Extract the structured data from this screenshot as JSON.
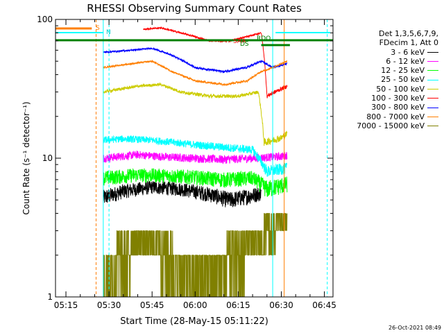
{
  "chart_data": {
    "type": "line",
    "title": "RHESSI Observing Summary Count Rates",
    "xlabel": "Start Time (28-May-15 05:11:22)",
    "ylabel": "Count Rate (s⁻¹ detector⁻¹)",
    "yscale": "log",
    "ylim": [
      1,
      100
    ],
    "xlim": [
      "05:11:22",
      "06:48:00"
    ],
    "xtick_labels": [
      "05:15",
      "05:30",
      "05:45",
      "06:00",
      "06:15",
      "06:30",
      "06:45"
    ],
    "ytick_labels": [
      "1",
      "10",
      "100"
    ],
    "legend_position": "right",
    "legend_header": [
      "Det 1,3,5,6,7,9,",
      "FDecim 1, Att 0"
    ],
    "legend": [
      {
        "label": "3 - 6 keV",
        "color": "#000000"
      },
      {
        "label": "6 - 12 keV",
        "color": "#ff00ff"
      },
      {
        "label": "12 - 25 keV",
        "color": "#00ff00"
      },
      {
        "label": "25 - 50 keV",
        "color": "#00ffff"
      },
      {
        "label": "50 - 100 keV",
        "color": "#cccc00"
      },
      {
        "label": "100 - 300 keV",
        "color": "#ff0000"
      },
      {
        "label": "300 - 800 keV",
        "color": "#0000ff"
      },
      {
        "label": "800 - 7000 keV",
        "color": "#ff7f00"
      },
      {
        "label": "7000 - 15000 keV",
        "color": "#808000"
      }
    ],
    "annotations": [
      {
        "text": "S",
        "color": "#ff7f00"
      },
      {
        "text": "N",
        "color": "#00cccc"
      },
      {
        "text": "SAA",
        "color": "#ff0000"
      },
      {
        "text": "RDO",
        "color": "#008000"
      },
      {
        "text": "DS",
        "color": "#008000"
      }
    ],
    "series": [
      {
        "name": "3 - 6 keV",
        "color": "#000000",
        "noise": 0.7,
        "points": [
          [
            "05:28",
            5.2
          ],
          [
            "05:35",
            5.8
          ],
          [
            "05:45",
            6.2
          ],
          [
            "05:55",
            6.0
          ],
          [
            "06:05",
            5.5
          ],
          [
            "06:12",
            5.0
          ],
          [
            "06:18",
            5.3
          ],
          [
            "06:23",
            5.6
          ]
        ]
      },
      {
        "name": "6 - 12 keV",
        "color": "#ff00ff",
        "noise": 0.7,
        "points": [
          [
            "05:28",
            10.0
          ],
          [
            "05:40",
            10.6
          ],
          [
            "05:50",
            10.2
          ],
          [
            "06:00",
            10.0
          ],
          [
            "06:10",
            9.8
          ],
          [
            "06:20",
            10.0
          ],
          [
            "06:30",
            10.3
          ],
          [
            "06:32",
            10.5
          ]
        ]
      },
      {
        "name": "12 - 25 keV",
        "color": "#00ff00",
        "noise": 0.9,
        "points": [
          [
            "05:28",
            7.2
          ],
          [
            "05:40",
            7.6
          ],
          [
            "05:50",
            7.5
          ],
          [
            "06:00",
            7.3
          ],
          [
            "06:10",
            7.0
          ],
          [
            "06:20",
            7.2
          ],
          [
            "06:25",
            6.0
          ],
          [
            "06:32",
            6.5
          ]
        ]
      },
      {
        "name": "25 - 50 keV",
        "color": "#00ffff",
        "noise": 0.8,
        "points": [
          [
            "05:28",
            13.5
          ],
          [
            "05:35",
            13.8
          ],
          [
            "05:45",
            13.5
          ],
          [
            "06:00",
            12.5
          ],
          [
            "06:10",
            12.0
          ],
          [
            "06:20",
            11.5
          ],
          [
            "06:25",
            8.0
          ],
          [
            "06:32",
            8.5
          ]
        ]
      },
      {
        "name": "50 - 100 keV",
        "color": "#cccc00",
        "noise": 0.8,
        "points": [
          [
            "05:28",
            30
          ],
          [
            "05:40",
            33
          ],
          [
            "05:48",
            34
          ],
          [
            "05:55",
            30
          ],
          [
            "06:05",
            28
          ],
          [
            "06:15",
            28
          ],
          [
            "06:22",
            30
          ],
          [
            "06:24",
            13
          ],
          [
            "06:30",
            14
          ],
          [
            "06:32",
            15
          ]
        ]
      },
      {
        "name": "100 - 300 keV",
        "color": "#ff0000",
        "noise": 1.0,
        "points": [
          [
            "05:42",
            85
          ],
          [
            "05:48",
            87
          ],
          [
            "05:55",
            80
          ],
          [
            "06:00",
            75
          ],
          [
            "06:05",
            70
          ],
          [
            "06:12",
            70
          ],
          [
            "06:18",
            75
          ],
          [
            "06:23",
            80
          ],
          [
            "06:25",
            28
          ],
          [
            "06:32",
            33
          ]
        ]
      },
      {
        "name": "300 - 800 keV",
        "color": "#0000ff",
        "noise": 0.8,
        "points": [
          [
            "05:28",
            58
          ],
          [
            "05:38",
            60
          ],
          [
            "05:45",
            62
          ],
          [
            "05:52",
            55
          ],
          [
            "06:00",
            45
          ],
          [
            "06:10",
            42
          ],
          [
            "06:18",
            45
          ],
          [
            "06:23",
            50
          ],
          [
            "06:27",
            45
          ],
          [
            "06:32",
            48
          ]
        ]
      },
      {
        "name": "800 - 7000 keV",
        "color": "#ff7f00",
        "noise": 0.6,
        "points": [
          [
            "05:28",
            45
          ],
          [
            "05:38",
            48
          ],
          [
            "05:45",
            50
          ],
          [
            "05:52",
            42
          ],
          [
            "06:00",
            36
          ],
          [
            "06:10",
            34
          ],
          [
            "06:18",
            36
          ],
          [
            "06:23",
            42
          ],
          [
            "06:27",
            45
          ],
          [
            "06:32",
            50
          ]
        ]
      },
      {
        "name": "7000 - 15000 keV",
        "color": "#808000",
        "steps": [
          1,
          2,
          3,
          4
        ],
        "points": [
          [
            "05:28",
            1.5
          ],
          [
            "05:35",
            2.0
          ],
          [
            "05:40",
            2.4
          ],
          [
            "05:48",
            2.2
          ],
          [
            "05:55",
            1.6
          ],
          [
            "06:05",
            1.5
          ],
          [
            "06:15",
            2.0
          ],
          [
            "06:22",
            2.6
          ],
          [
            "06:28",
            3.2
          ],
          [
            "06:32",
            3.3
          ]
        ]
      }
    ]
  },
  "timestamp": "26-Oct-2021 08:49"
}
